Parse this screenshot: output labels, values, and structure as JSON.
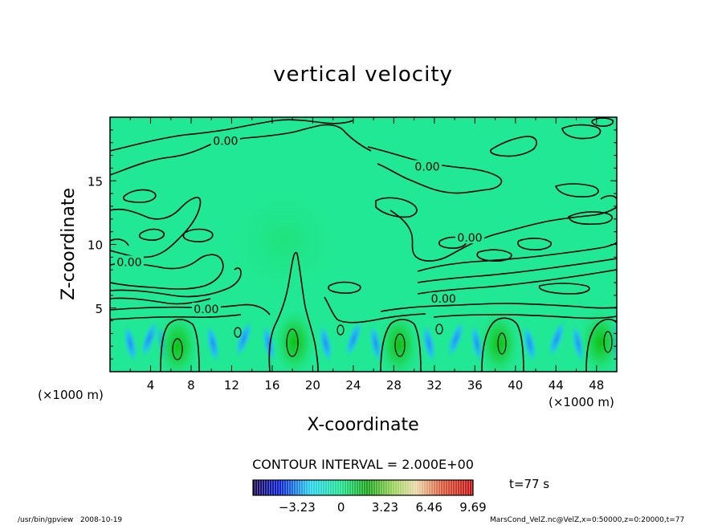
{
  "chart_data": {
    "type": "heatmap",
    "title": "vertical velocity",
    "xlabel": "X-coordinate",
    "ylabel": "Z-coordinate",
    "x_unit_left": "(×1000 m)",
    "x_unit_right": "(×1000 m)",
    "xlim": [
      0,
      50
    ],
    "ylim": [
      0,
      20
    ],
    "xticks": [
      4,
      8,
      12,
      16,
      20,
      24,
      28,
      32,
      36,
      40,
      44,
      48
    ],
    "yticks": [
      5,
      10,
      15
    ],
    "contour_interval_text": "CONTOUR INTERVAL = 2.000E+00",
    "contour_labels": [
      {
        "text": "0.00",
        "x": 11.4,
        "z": 18.0
      },
      {
        "text": "0.00",
        "x": 31.3,
        "z": 16.0
      },
      {
        "text": "0.00",
        "x": 35.5,
        "z": 10.4
      },
      {
        "text": "0.00",
        "x": 1.9,
        "z": 8.5
      },
      {
        "text": "0.00",
        "x": 9.5,
        "z": 4.8
      },
      {
        "text": "0.00",
        "x": 32.9,
        "z": 5.6
      }
    ],
    "updraft_cores": [
      {
        "x": 6.7,
        "z": 2.0,
        "w_max": 9.69
      },
      {
        "x": 18.2,
        "z": 2.3,
        "w_max": 9.69
      },
      {
        "x": 28.5,
        "z": 2.1,
        "w_max": 9.69
      },
      {
        "x": 38.4,
        "z": 2.2,
        "w_max": 9.69
      },
      {
        "x": 48.4,
        "z": 2.3,
        "w_max": 9.69
      }
    ],
    "colorbar": {
      "ticks": [
        "−3.23",
        "0",
        "3.23",
        "6.46",
        "9.69"
      ],
      "min": -6.46,
      "max": 9.69
    },
    "time_label": "t=77 s",
    "colors": {
      "background_field": "#21e894",
      "positive_core": "#14c41c",
      "negative_core": "#23a7f0",
      "contour_line": "#000000"
    }
  },
  "footer": {
    "left": "/usr/bin/gpview   2008-10-19",
    "right": "MarsCond_VelZ.nc@VelZ,x=0:50000,z=0:20000,t=77"
  }
}
